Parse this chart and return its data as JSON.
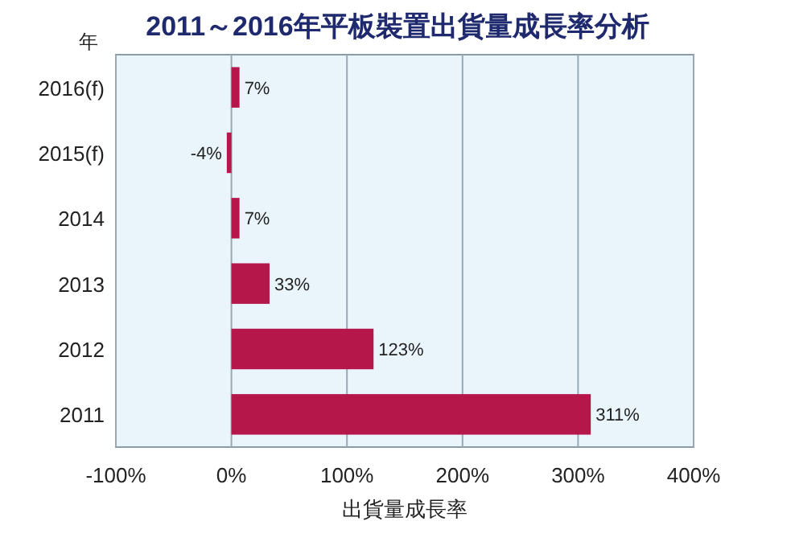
{
  "chart_data": {
    "type": "bar",
    "orientation": "horizontal",
    "title": "2011～2016年平板裝置出貨量成長率分析",
    "ylabel": "年",
    "xlabel": "出貨量成長率",
    "categories": [
      "2016(f)",
      "2015(f)",
      "2014",
      "2013",
      "2012",
      "2011"
    ],
    "values": [
      7,
      -4,
      7,
      33,
      123,
      311
    ],
    "color": "#b5174a",
    "value_labels": [
      "7%",
      "-4%",
      "7%",
      "33%",
      "123%",
      "311%"
    ],
    "xlim": [
      -100,
      400
    ],
    "xticks": [
      {
        "value": -100,
        "label": "-100%"
      },
      {
        "value": 0,
        "label": "0%"
      },
      {
        "value": 100,
        "label": "100%"
      },
      {
        "value": 200,
        "label": "200%"
      },
      {
        "value": 300,
        "label": "300%"
      },
      {
        "value": 400,
        "label": "400%"
      }
    ],
    "grid": "x"
  }
}
